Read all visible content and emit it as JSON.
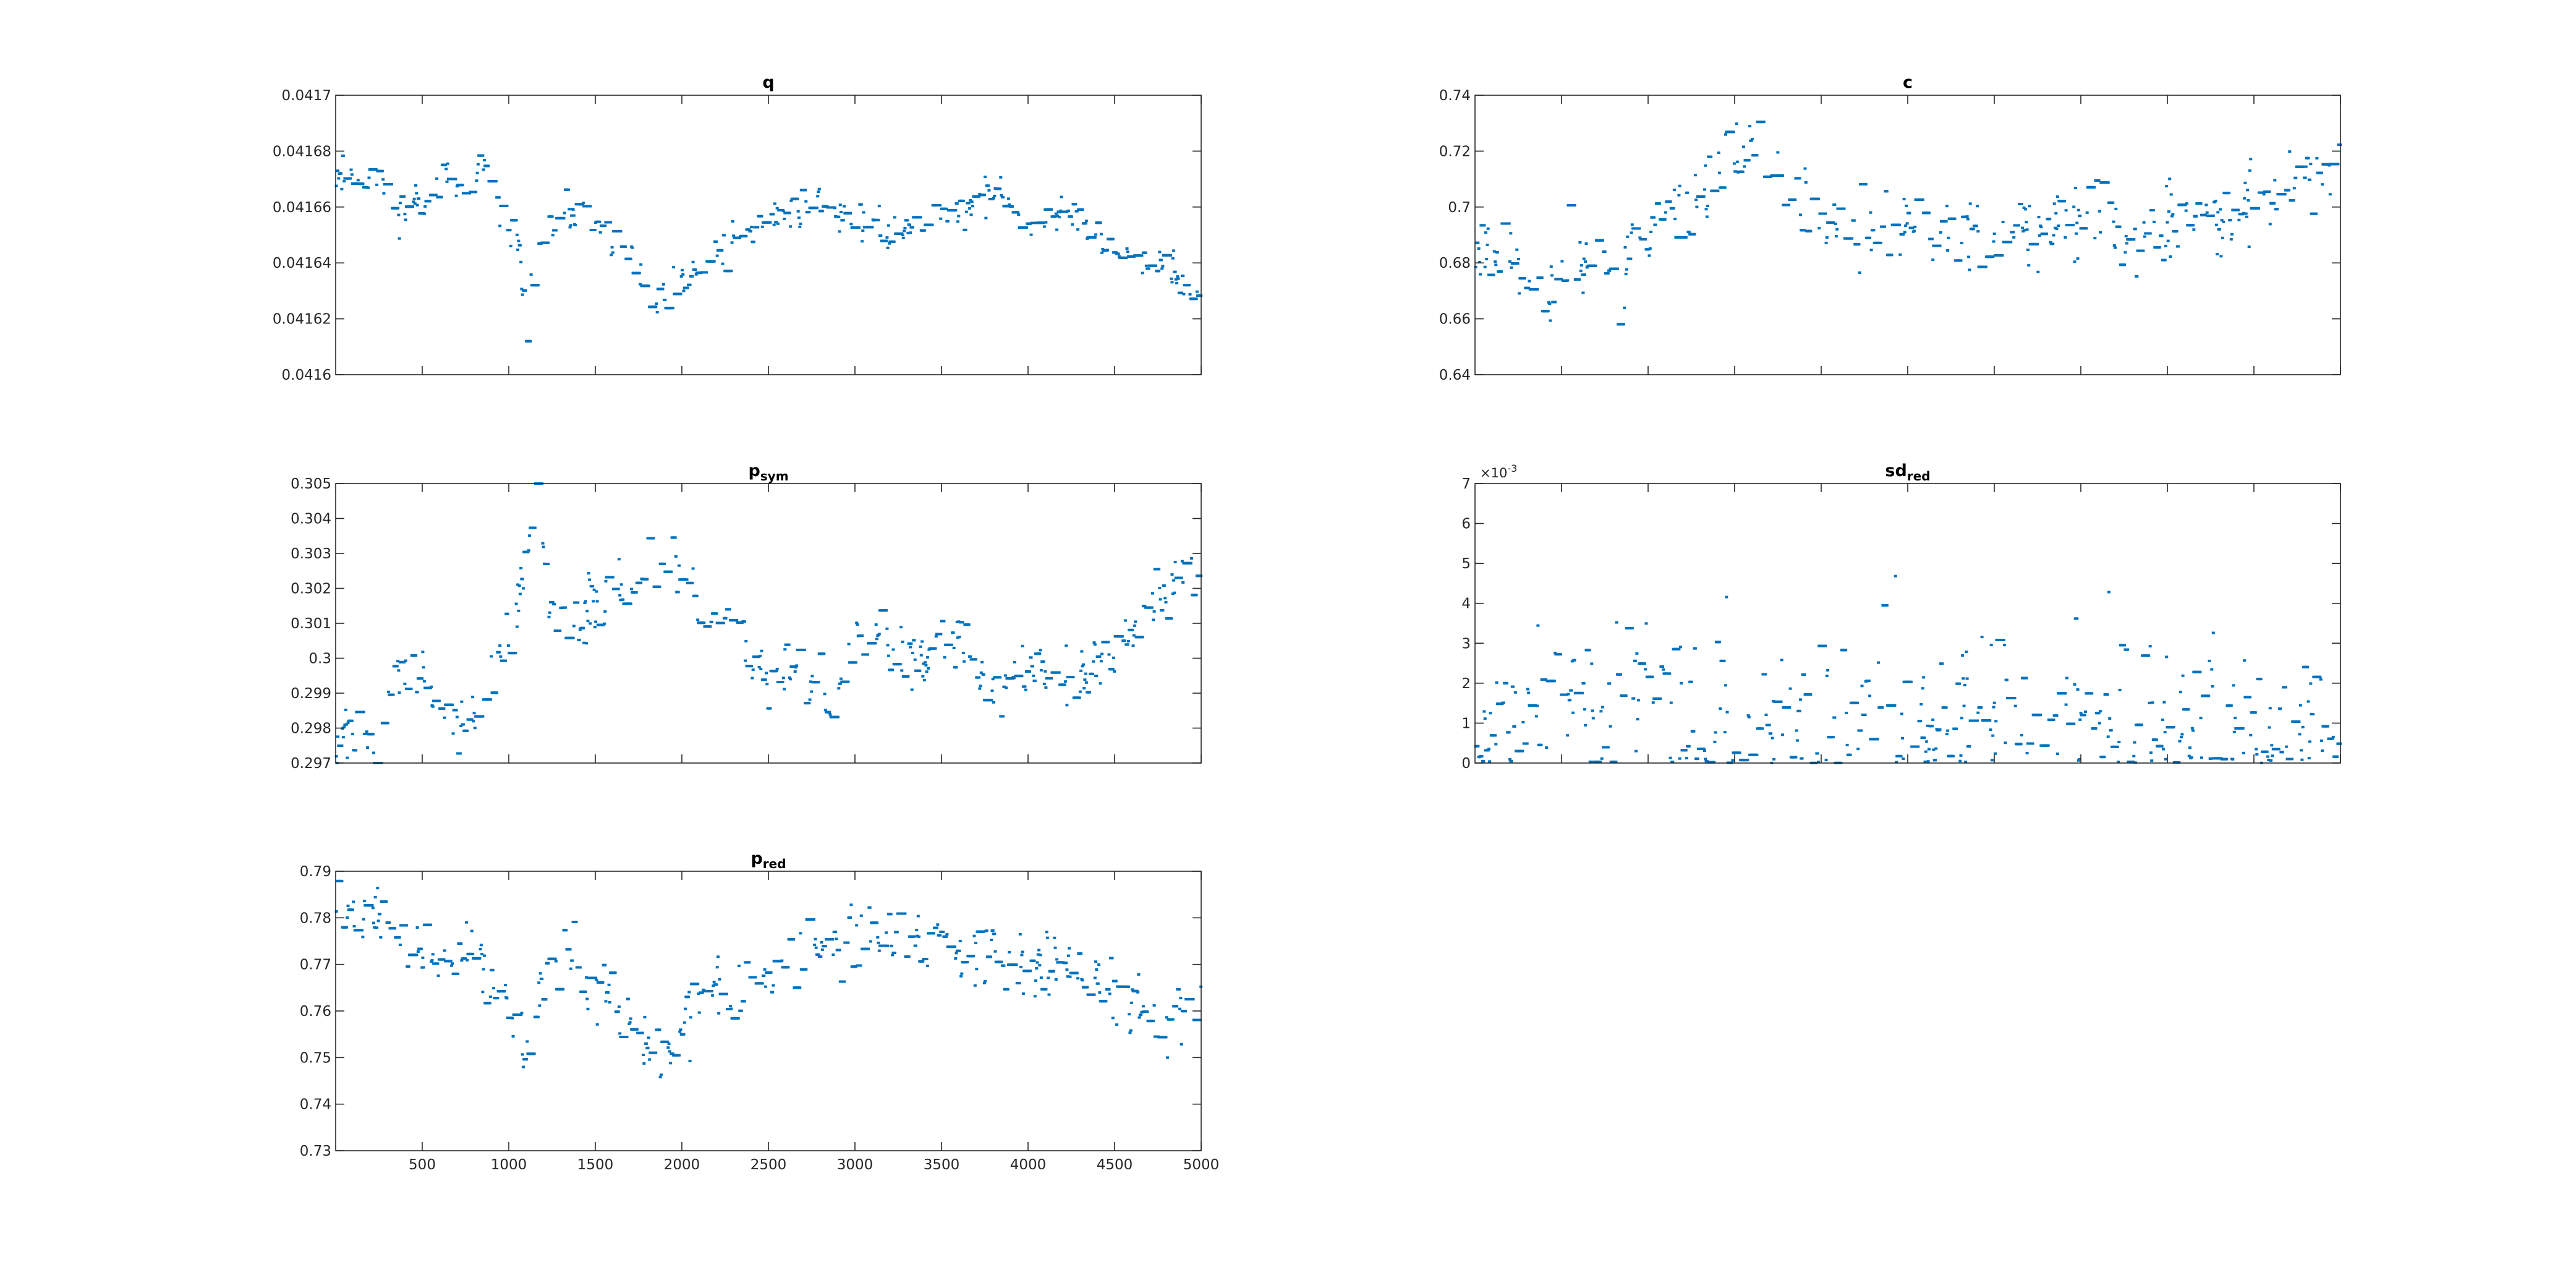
{
  "figure": {
    "marker_color": "#0072BD",
    "axis_color": "#262626",
    "background": "#ffffff"
  },
  "chart_data": [
    {
      "type": "scatter",
      "title": "q",
      "title_sub": "",
      "xlim": [
        0,
        5000
      ],
      "ylim": [
        0.0416,
        0.0417
      ],
      "xticks": [
        500,
        1000,
        1500,
        2000,
        2500,
        3000,
        3500,
        4000,
        4500,
        5000
      ],
      "xtick_labels": [],
      "yticks": [
        0.0416,
        0.04162,
        0.04164,
        0.04166,
        0.04168,
        0.0417
      ],
      "ytick_labels": [
        "0.0416",
        "0.04162",
        "0.04164",
        "0.04166",
        "0.04168",
        "0.0417"
      ],
      "y_exponent_label": "",
      "trend_x": [
        0,
        100,
        250,
        350,
        450,
        600,
        750,
        850,
        950,
        1050,
        1100,
        1150,
        1250,
        1400,
        1500,
        1600,
        1700,
        1800,
        1900,
        2000,
        2100,
        2200,
        2300,
        2400,
        2500,
        2600,
        2800,
        3000,
        3200,
        3400,
        3600,
        3800,
        4000,
        4200,
        4400,
        4600,
        4800,
        5000
      ],
      "trend_y": [
        0.041672,
        0.041671,
        0.041671,
        0.041658,
        0.04166,
        0.04167,
        0.041666,
        0.041674,
        0.041658,
        0.04165,
        0.041615,
        0.04164,
        0.041655,
        0.04166,
        0.041652,
        0.041648,
        0.041645,
        0.041625,
        0.041625,
        0.041633,
        0.041637,
        0.041642,
        0.041648,
        0.041652,
        0.041655,
        0.041658,
        0.041662,
        0.041655,
        0.04165,
        0.041656,
        0.04166,
        0.041665,
        0.041655,
        0.041658,
        0.041648,
        0.041644,
        0.041638,
        0.041622
      ],
      "noise": 3.5e-06,
      "seed": 11
    },
    {
      "type": "scatter",
      "title": "c",
      "title_sub": "",
      "xlim": [
        0,
        5000
      ],
      "ylim": [
        0.64,
        0.74
      ],
      "xticks": [
        500,
        1000,
        1500,
        2000,
        2500,
        3000,
        3500,
        4000,
        4500,
        5000
      ],
      "xtick_labels": [],
      "yticks": [
        0.64,
        0.66,
        0.68,
        0.7,
        0.72,
        0.74
      ],
      "ytick_labels": [
        "0.64",
        "0.66",
        "0.68",
        "0.7",
        "0.72",
        "0.74"
      ],
      "y_exponent_label": "",
      "trend_x": [
        0,
        150,
        300,
        400,
        500,
        700,
        850,
        900,
        1000,
        1200,
        1400,
        1600,
        1700,
        1800,
        2000,
        2200,
        2400,
        2600,
        2800,
        3000,
        3200,
        3400,
        3600,
        3800,
        4000,
        4200,
        4400,
        4600,
        4800,
        5000
      ],
      "trend_y": [
        0.683,
        0.686,
        0.672,
        0.664,
        0.68,
        0.686,
        0.67,
        0.685,
        0.695,
        0.7,
        0.712,
        0.725,
        0.716,
        0.703,
        0.697,
        0.692,
        0.694,
        0.695,
        0.685,
        0.688,
        0.69,
        0.693,
        0.699,
        0.686,
        0.695,
        0.695,
        0.698,
        0.706,
        0.713,
        0.71
      ],
      "noise": 0.007,
      "seed": 23
    },
    {
      "type": "scatter",
      "title": "p",
      "title_sub": "sym",
      "xlim": [
        0,
        5000
      ],
      "ylim": [
        0.297,
        0.305
      ],
      "xticks": [
        500,
        1000,
        1500,
        2000,
        2500,
        3000,
        3500,
        4000,
        4500,
        5000
      ],
      "xtick_labels": [],
      "yticks": [
        0.297,
        0.298,
        0.299,
        0.3,
        0.301,
        0.302,
        0.303,
        0.304,
        0.305
      ],
      "ytick_labels": [
        "0.297",
        "0.298",
        "0.299",
        "0.3",
        "0.301",
        "0.302",
        "0.303",
        "0.304",
        "0.305"
      ],
      "y_exponent_label": "",
      "trend_x": [
        0,
        100,
        250,
        350,
        450,
        600,
        700,
        800,
        900,
        1000,
        1100,
        1150,
        1250,
        1400,
        1500,
        1700,
        1800,
        1900,
        2100,
        2300,
        2500,
        2700,
        2900,
        3000,
        3200,
        3400,
        3600,
        3800,
        4000,
        4200,
        4400,
        4600,
        4800,
        5000
      ],
      "trend_y": [
        0.2976,
        0.298,
        0.2975,
        0.2995,
        0.2998,
        0.2985,
        0.298,
        0.2985,
        0.2995,
        0.3005,
        0.3025,
        0.3045,
        0.301,
        0.3008,
        0.3018,
        0.302,
        0.3028,
        0.3025,
        0.3015,
        0.3008,
        0.2995,
        0.2993,
        0.299,
        0.3003,
        0.3003,
        0.3,
        0.3005,
        0.299,
        0.2998,
        0.2995,
        0.3,
        0.301,
        0.3018,
        0.3027
      ],
      "noise": 0.00045,
      "seed": 37
    },
    {
      "type": "scatter",
      "title": "sd",
      "title_sub": "red",
      "xlim": [
        0,
        5000
      ],
      "ylim": [
        0,
        0.007
      ],
      "xticks": [
        500,
        1000,
        1500,
        2000,
        2500,
        3000,
        3500,
        4000,
        4500,
        5000
      ],
      "xtick_labels": [],
      "yticks": [
        0,
        0.001,
        0.002,
        0.003,
        0.004,
        0.005,
        0.006,
        0.007
      ],
      "ytick_labels": [
        "0",
        "1",
        "2",
        "3",
        "4",
        "5",
        "6",
        "7"
      ],
      "y_exponent_label": "×10",
      "y_exponent_power": "-3",
      "trend_x": [
        0,
        500,
        1000,
        1500,
        2000,
        2500,
        3000,
        3500,
        4000,
        4500,
        5000
      ],
      "trend_y": [
        0.0009,
        0.0012,
        0.0014,
        0.0012,
        0.0011,
        0.0008,
        0.0011,
        0.0009,
        0.0007,
        0.0005,
        0.0003
      ],
      "noise": 0.0011,
      "seed": 53,
      "nonnegative": true
    },
    {
      "type": "scatter",
      "title": "p",
      "title_sub": "red",
      "xlim": [
        0,
        5000
      ],
      "ylim": [
        0.73,
        0.79
      ],
      "xticks": [
        500,
        1000,
        1500,
        2000,
        2500,
        3000,
        3500,
        4000,
        4500,
        5000
      ],
      "xtick_labels": [
        "500",
        "1000",
        "1500",
        "2000",
        "2500",
        "3000",
        "3500",
        "4000",
        "4500",
        "5000"
      ],
      "yticks": [
        0.73,
        0.74,
        0.75,
        0.76,
        0.77,
        0.78,
        0.79
      ],
      "ytick_labels": [
        "0.73",
        "0.74",
        "0.75",
        "0.76",
        "0.77",
        "0.78",
        "0.79"
      ],
      "y_exponent_label": "",
      "trend_x": [
        0,
        100,
        250,
        350,
        450,
        550,
        700,
        800,
        900,
        1000,
        1100,
        1150,
        1250,
        1350,
        1450,
        1550,
        1700,
        1800,
        1900,
        2000,
        2100,
        2200,
        2400,
        2600,
        2800,
        3000,
        3200,
        3400,
        3600,
        3800,
        4000,
        4200,
        4400,
        4500,
        4650,
        4800,
        5000
      ],
      "trend_y": [
        0.782,
        0.78,
        0.782,
        0.776,
        0.772,
        0.77,
        0.772,
        0.775,
        0.765,
        0.76,
        0.75,
        0.758,
        0.77,
        0.775,
        0.765,
        0.762,
        0.756,
        0.752,
        0.75,
        0.755,
        0.762,
        0.765,
        0.765,
        0.772,
        0.774,
        0.775,
        0.773,
        0.775,
        0.772,
        0.774,
        0.77,
        0.771,
        0.768,
        0.765,
        0.76,
        0.757,
        0.763
      ],
      "noise": 0.0035,
      "seed": 71
    }
  ]
}
